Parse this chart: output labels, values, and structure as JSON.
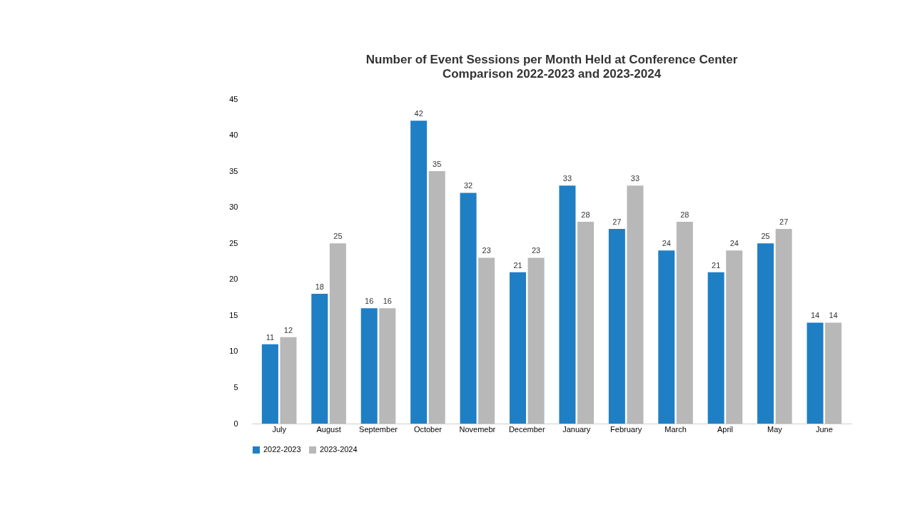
{
  "chart_data": {
    "type": "bar",
    "title": "Number of Event Sessions per Month Held at Conference Center",
    "subtitle": "Comparison 2022-2023 and 2023-2024",
    "categories": [
      "July",
      "August",
      "September",
      "October",
      "Novemebr",
      "December",
      "January",
      "February",
      "March",
      "April",
      "May",
      "June"
    ],
    "series": [
      {
        "name": "2022-2023",
        "color": "#1f7fc4",
        "values": [
          11,
          18,
          16,
          42,
          32,
          21,
          33,
          27,
          24,
          21,
          25,
          14
        ]
      },
      {
        "name": "2023-2024",
        "color": "#b8b8b8",
        "values": [
          12,
          25,
          16,
          35,
          23,
          23,
          28,
          33,
          28,
          24,
          27,
          14
        ]
      }
    ],
    "ylim": [
      0,
      45
    ],
    "yticks": [
      0,
      5,
      10,
      15,
      20,
      25,
      30,
      35,
      40,
      45
    ],
    "grid": false,
    "legend": "bottom",
    "data_labels": true
  }
}
